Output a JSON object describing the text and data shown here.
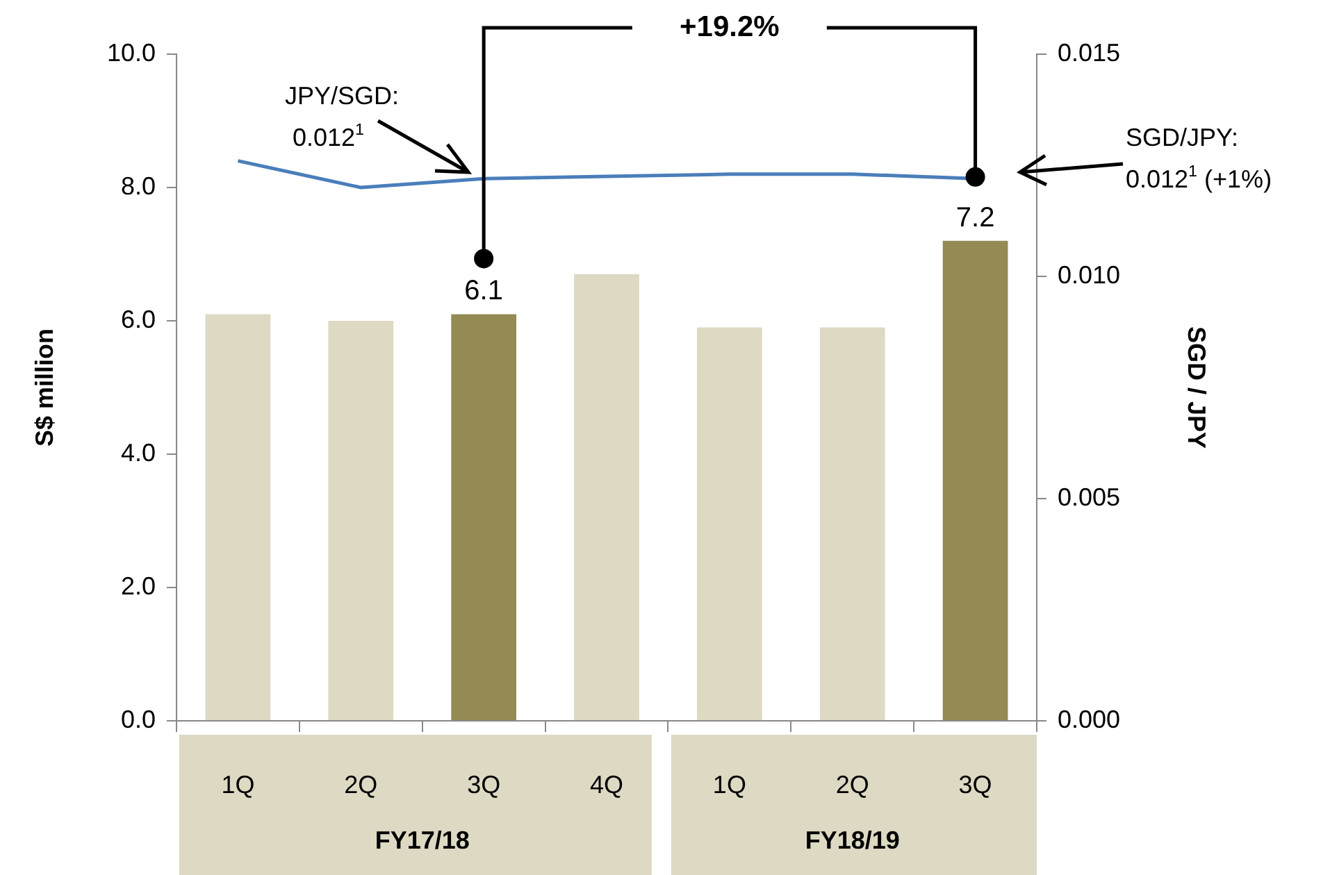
{
  "chart_data": {
    "type": "bar",
    "ylabel": "S$ million",
    "y2label": "SGD / JPY",
    "categories": [
      "1Q",
      "2Q",
      "3Q",
      "4Q",
      "1Q",
      "2Q",
      "3Q"
    ],
    "series": [
      {
        "values": [
          6.1,
          6.0,
          6.1,
          6.7,
          5.9,
          5.9,
          7.2
        ],
        "colors": [
          "#ddd9c3",
          "#ddd9c3",
          "#948a54",
          "#ddd9c3",
          "#ddd9c3",
          "#ddd9c3",
          "#948a54"
        ],
        "value_labels": [
          null,
          null,
          "6.1",
          null,
          null,
          null,
          "7.2"
        ]
      },
      {
        "type": "line",
        "axis": "y2",
        "color": "#4a7ebb",
        "values": [
          0.0126,
          0.012,
          0.0122,
          0.01225,
          0.0123,
          0.0123,
          0.0122
        ]
      }
    ],
    "ylim": [
      0,
      10
    ],
    "yticks": [
      {
        "value": 0,
        "label": "0.0"
      },
      {
        "value": 2,
        "label": "2.0"
      },
      {
        "value": 4,
        "label": "4.0"
      },
      {
        "value": 6,
        "label": "6.0"
      },
      {
        "value": 8,
        "label": "8.0"
      },
      {
        "value": 10,
        "label": "10.0"
      }
    ],
    "y2lim": [
      0,
      0.015
    ],
    "y2ticks": [
      {
        "value": 0,
        "label": "0.000"
      },
      {
        "value": 0.005,
        "label": "0.005"
      },
      {
        "value": 0.01,
        "label": "0.010"
      },
      {
        "value": 0.015,
        "label": "0.015"
      }
    ],
    "annotations": [
      "+19.2%",
      "JPY/SGD: 0.012$^{1}$",
      "SGD/JPY: 0.012$^{1}$ (+1%)",
      "FY17/18",
      "FY18/19"
    ],
    "grid": false,
    "legend": false,
    "marker": "none",
    "line_style": "solid"
  }
}
